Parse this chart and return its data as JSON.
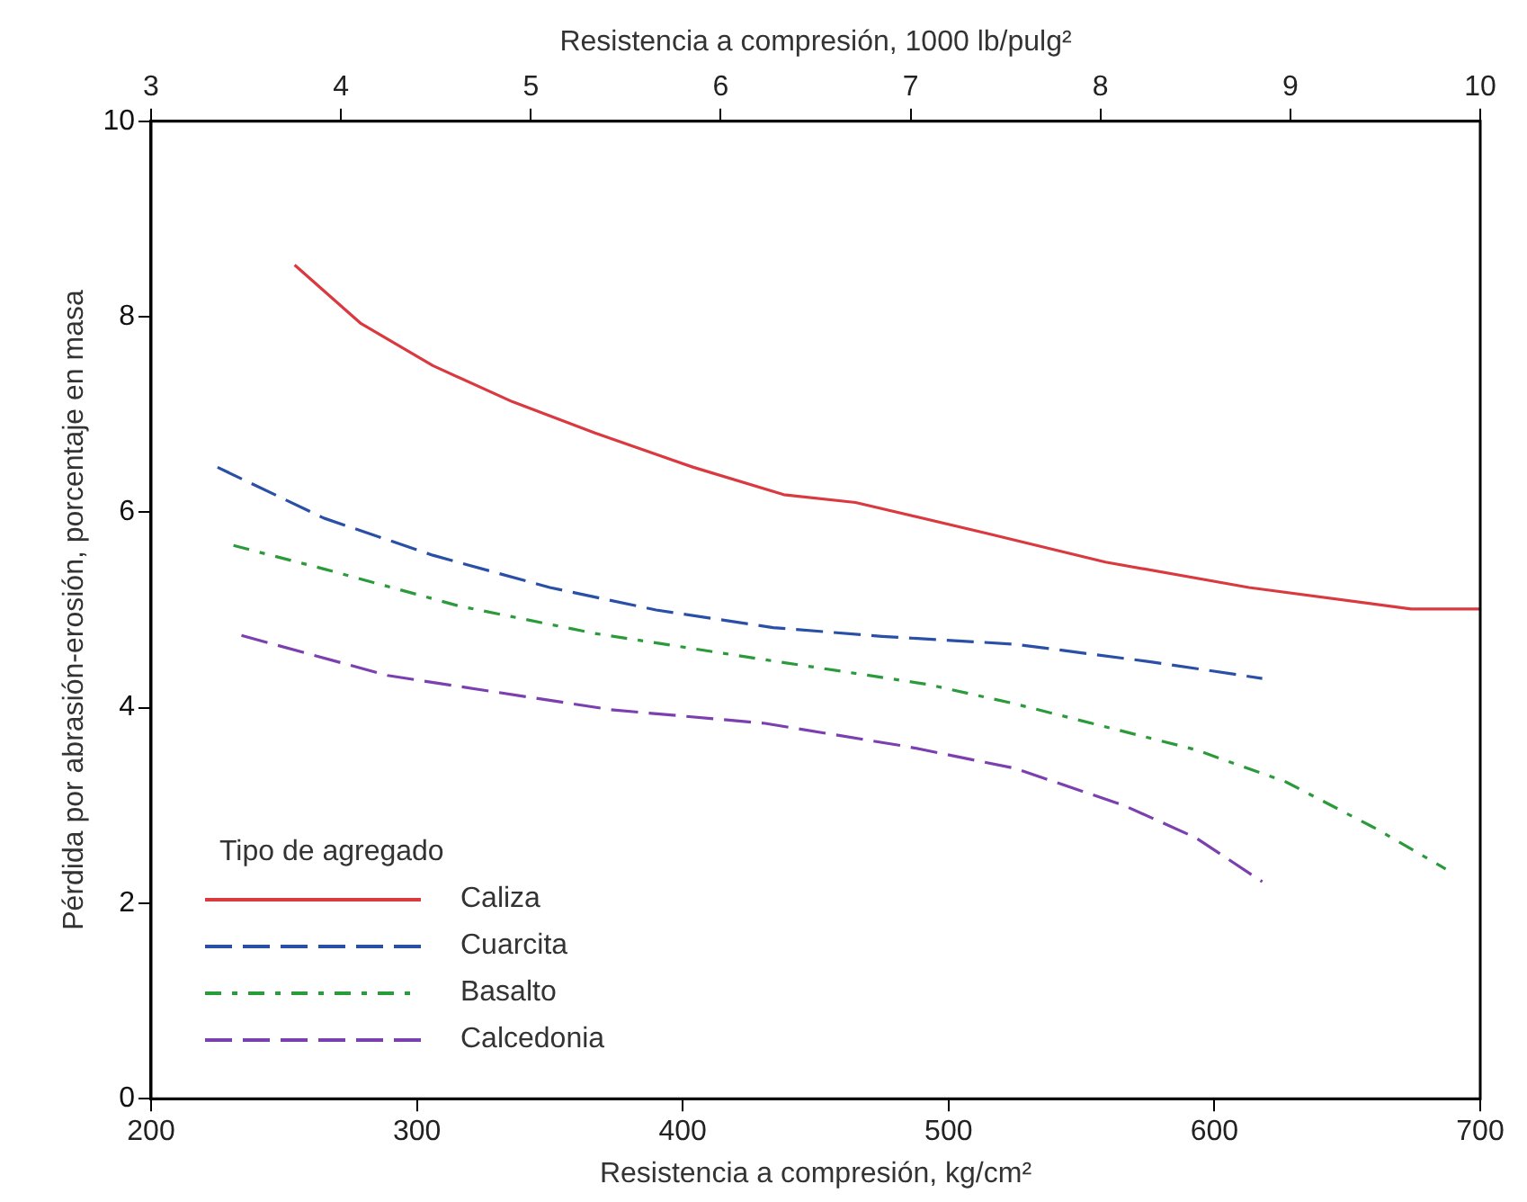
{
  "chart_data": {
    "type": "line",
    "xlabel": "Resistencia a compresión, kg/cm²",
    "x2label": "Resistencia a compresión, 1000 lb/pulg²",
    "ylabel": "Pérdida por abrasión-erosión, porcentaje en masa",
    "legend_title": "Tipo de agregado",
    "legend": "bottom left",
    "grid": false,
    "marker": "none",
    "xlim": [
      200,
      700
    ],
    "xticks": [
      200,
      300,
      400,
      500,
      600,
      700
    ],
    "x2lim": [
      3,
      10
    ],
    "x2ticks": [
      3,
      4,
      5,
      6,
      7,
      8,
      9,
      10
    ],
    "ylim": [
      0,
      10
    ],
    "yticks": [
      0,
      2,
      4,
      6,
      8,
      10
    ],
    "series": [
      {
        "name": "Caliza",
        "color": "#d9393f",
        "line_style": "solid",
        "x": [
          254,
          279,
          306,
          336,
          367,
          404,
          438,
          465,
          515,
          559,
          613,
          674,
          700
        ],
        "values": [
          8.53,
          7.93,
          7.5,
          7.13,
          6.81,
          6.46,
          6.18,
          6.1,
          5.78,
          5.49,
          5.23,
          5.01,
          5.01
        ]
      },
      {
        "name": "Cuarcita",
        "color": "#2a4fa6",
        "line_style": "dashed",
        "x": [
          225,
          265,
          306,
          350,
          390,
          434,
          475,
          525,
          576,
          618
        ],
        "values": [
          6.46,
          5.94,
          5.56,
          5.23,
          5.0,
          4.82,
          4.73,
          4.65,
          4.47,
          4.3
        ]
      },
      {
        "name": "Basalto",
        "color": "#2a9a3a",
        "line_style": "dashdot",
        "x": [
          231,
          265,
          316,
          367,
          424,
          492,
          525,
          593,
          627,
          661,
          687
        ],
        "values": [
          5.66,
          5.42,
          5.04,
          4.76,
          4.52,
          4.24,
          4.04,
          3.57,
          3.24,
          2.76,
          2.35
        ]
      },
      {
        "name": "Calcedonia",
        "color": "#7b3fb0",
        "line_style": "dashed",
        "x": [
          234,
          289,
          373,
          431,
          485,
          525,
          566,
          593,
          618
        ],
        "values": [
          4.74,
          4.33,
          3.98,
          3.84,
          3.6,
          3.38,
          3.0,
          2.67,
          2.22
        ]
      }
    ]
  }
}
